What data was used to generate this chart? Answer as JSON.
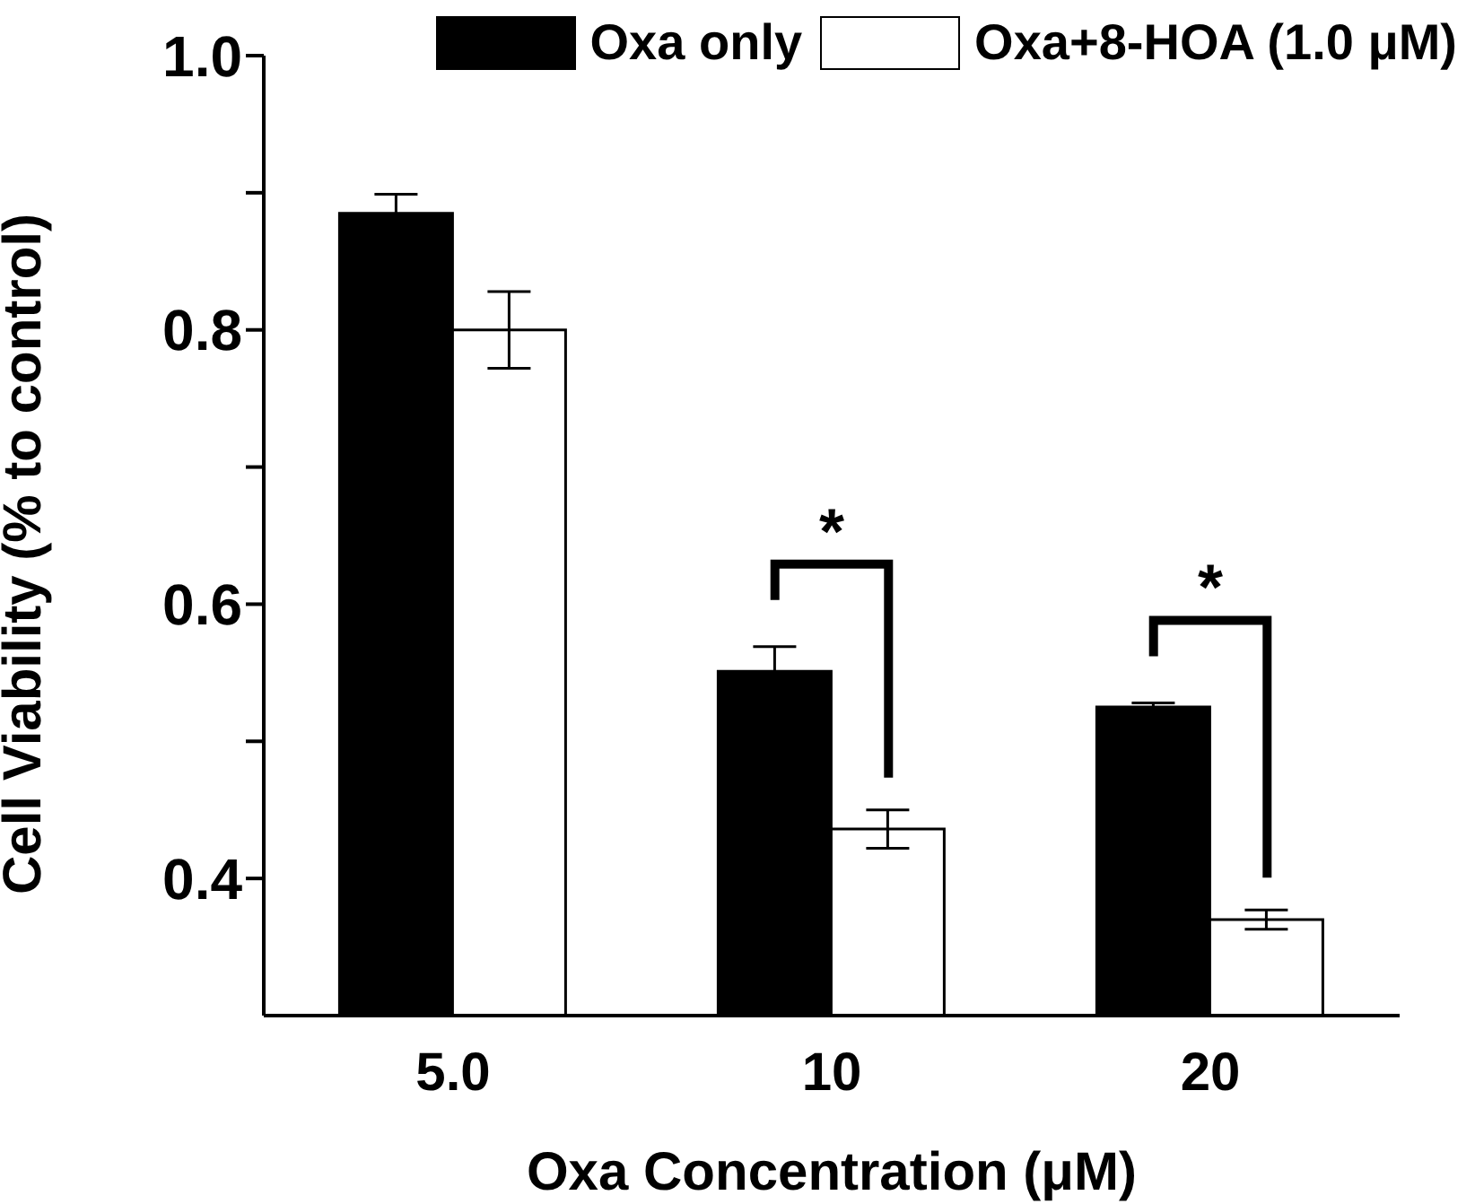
{
  "chart_data": {
    "type": "bar",
    "xlabel": "Oxa Concentration (μM)",
    "ylabel": "Cell Viability (% to control)",
    "categories": [
      "5.0",
      "10",
      "20"
    ],
    "series": [
      {
        "name": "Oxa only",
        "color": "#000000",
        "values": [
          0.885,
          0.551,
          0.525
        ],
        "errors": [
          0.014,
          0.018,
          0.003
        ]
      },
      {
        "name": "Oxa+8-HOA (1.0 μM)",
        "color": "#ffffff",
        "values": [
          0.8,
          0.436,
          0.37
        ],
        "errors": [
          0.028,
          0.014,
          0.007
        ]
      }
    ],
    "ylim": [
      0.3,
      1.0
    ],
    "yticks": [
      {
        "value": 0.4,
        "label": "0.4"
      },
      {
        "value": 0.5,
        "label": null
      },
      {
        "value": 0.6,
        "label": "0.6"
      },
      {
        "value": 0.7,
        "label": null
      },
      {
        "value": 0.8,
        "label": "0.8"
      },
      {
        "value": 0.9,
        "label": null
      },
      {
        "value": 1.0,
        "label": "1.0"
      }
    ],
    "annotations": [
      "*",
      "*"
    ],
    "legend": "top",
    "grid": false
  }
}
